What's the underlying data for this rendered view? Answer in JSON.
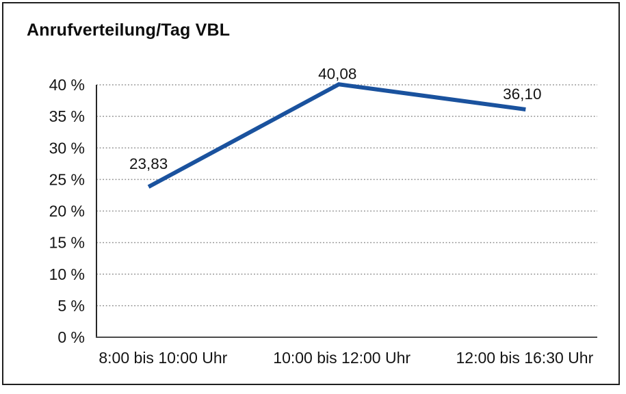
{
  "chart_data": {
    "type": "line",
    "title": "Anrufverteilung/Tag VBL",
    "categories": [
      "8:00 bis 10:00 Uhr",
      "10:00 bis 12:00 Uhr",
      "12:00 bis 16:30 Uhr"
    ],
    "values": [
      23.83,
      40.08,
      36.1
    ],
    "data_labels": [
      "23,83",
      "40,08",
      "36,10"
    ],
    "y_ticks": [
      "0 %",
      "5 %",
      "10 %",
      "15 %",
      "20 %",
      "25 %",
      "30 %",
      "35 %",
      "40 %"
    ],
    "ylim": [
      0,
      40
    ],
    "y_step": 5,
    "xlabel": "",
    "ylabel": "",
    "legend": "none",
    "grid": "horizontal-dotted",
    "colors": {
      "line": "#1a529e",
      "grid": "#8f8f8f",
      "y_axis": "#262626",
      "x_axis": "#4a4a4a",
      "text": "#141414",
      "background": "#ffffff",
      "frame_border": "#1f1f1f"
    }
  }
}
